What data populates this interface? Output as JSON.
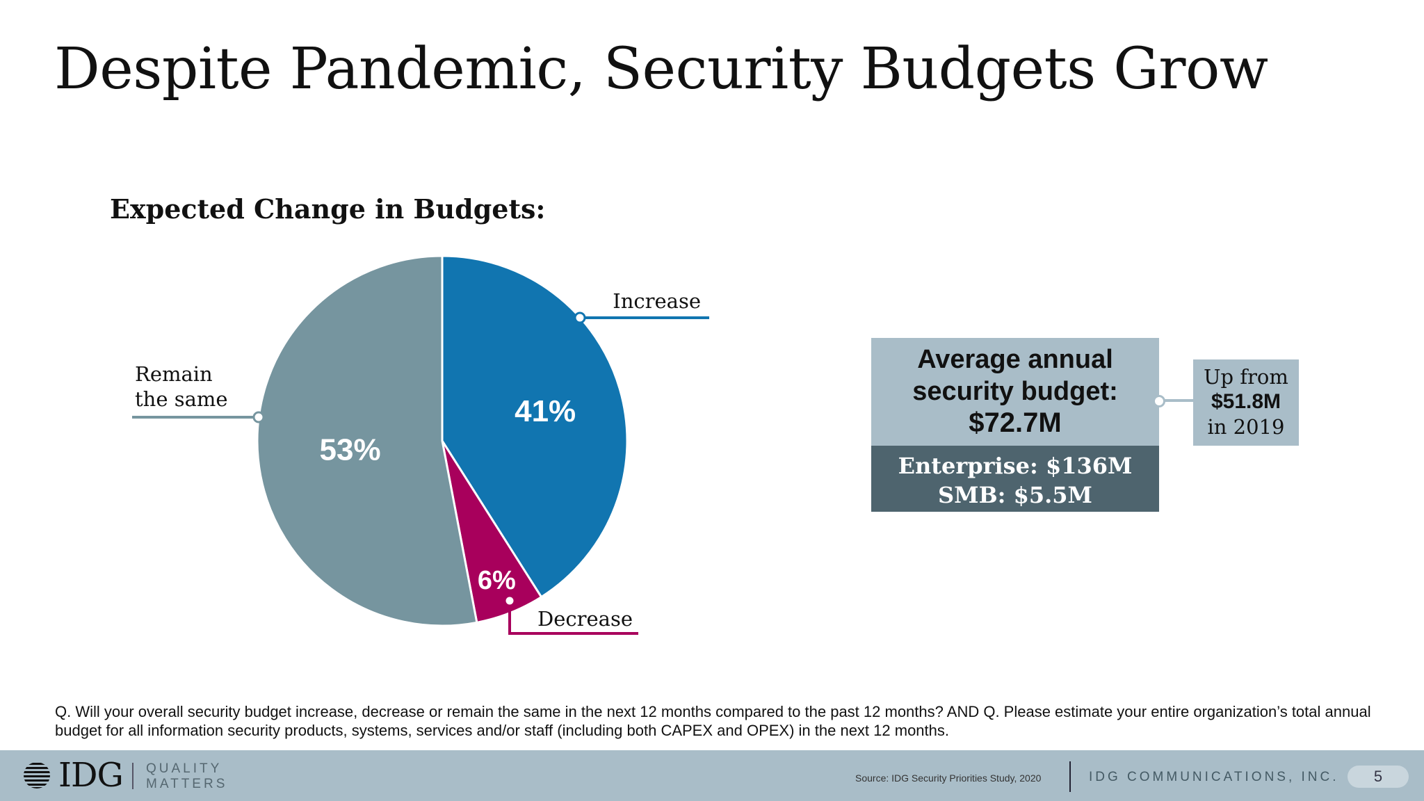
{
  "title": "Despite Pandemic, Security Budgets Grow",
  "chart_data": {
    "type": "pie",
    "title": "Expected Change in Budgets:",
    "slices": [
      {
        "label": "Increase",
        "value": 41,
        "display": "41%",
        "color": "#1175b0"
      },
      {
        "label": "Decrease",
        "value": 6,
        "display": "6%",
        "color": "#a8005c"
      },
      {
        "label": "Remain the same",
        "label_lines": [
          "Remain",
          "the same"
        ],
        "value": 53,
        "display": "53%",
        "color": "#76959f"
      }
    ]
  },
  "stat_box": {
    "line1": "Average annual",
    "line2": "security budget:",
    "value": "$72.7M",
    "enterprise": "Enterprise: $136M",
    "smb": "SMB: $5.5M"
  },
  "comparison": {
    "line1": "Up from",
    "value": "$51.8M",
    "line3": "in 2019"
  },
  "question": "Q. Will your overall security budget increase, decrease or remain the same in the next 12 months compared to the past 12 months? AND Q. Please estimate your entire organization’s total annual budget for all information security products, systems, services and/or staff (including both CAPEX and OPEX) in the next 12 months.",
  "footer": {
    "logo": "IDG",
    "tagline_line1": "QUALITY",
    "tagline_line2": "MATTERS",
    "source": "Source: IDG Security Priorities Study, 2020",
    "company": "IDG COMMUNICATIONS, INC.",
    "page_number": "5"
  }
}
